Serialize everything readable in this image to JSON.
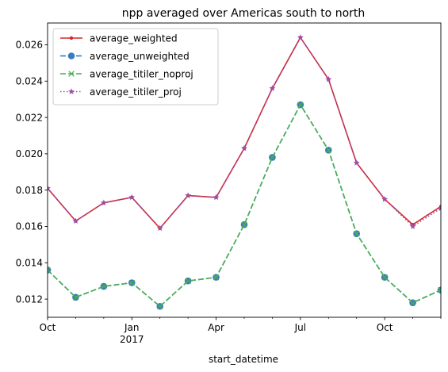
{
  "chart_data": {
    "type": "line",
    "title": "npp averaged over Americas south to north",
    "xlabel": "start_datetime",
    "ylabel": "",
    "x": [
      "2016-10",
      "2016-11",
      "2016-12",
      "2017-01",
      "2017-02",
      "2017-03",
      "2017-04",
      "2017-05",
      "2017-06",
      "2017-07",
      "2017-08",
      "2017-09",
      "2017-10",
      "2017-11",
      "2017-12"
    ],
    "x_tick_labels": [
      {
        "x": "2016-10",
        "label": "Oct",
        "sublabel": ""
      },
      {
        "x": "2017-01",
        "label": "Jan",
        "sublabel": "2017"
      },
      {
        "x": "2017-04",
        "label": "Apr",
        "sublabel": ""
      },
      {
        "x": "2017-07",
        "label": "Jul",
        "sublabel": ""
      },
      {
        "x": "2017-10",
        "label": "Oct",
        "sublabel": ""
      }
    ],
    "x_minor_ticks": [
      "2016-11",
      "2016-12",
      "2017-02",
      "2017-03",
      "2017-05",
      "2017-06",
      "2017-08",
      "2017-09",
      "2017-11",
      "2017-12"
    ],
    "ylim": [
      0.011,
      0.0272
    ],
    "y_ticks": [
      0.012,
      0.014,
      0.016,
      0.018,
      0.02,
      0.022,
      0.024,
      0.026
    ],
    "y_tick_labels": [
      "0.012",
      "0.014",
      "0.016",
      "0.018",
      "0.020",
      "0.022",
      "0.024",
      "0.026"
    ],
    "grid": false,
    "legend_position": "top-left",
    "series": [
      {
        "name": "average_weighted",
        "color": "#d62728",
        "line_style": "solid",
        "marker": "dot",
        "values": [
          0.0181,
          0.0163,
          0.0173,
          0.0176,
          0.0159,
          0.0177,
          0.0176,
          0.0203,
          0.0236,
          0.0264,
          0.0241,
          0.0195,
          0.0175,
          0.0161,
          0.0171
        ]
      },
      {
        "name": "average_unweighted",
        "color": "#1f77b4",
        "marker_color": "#3a7bbf",
        "line_style": "dashed",
        "marker": "circle",
        "values": [
          0.0136,
          0.0121,
          0.0127,
          0.0129,
          0.0116,
          0.013,
          0.0132,
          0.0161,
          0.0198,
          0.0227,
          0.0202,
          0.0156,
          0.0132,
          0.0118,
          0.0125
        ]
      },
      {
        "name": "average_titiler_noproj",
        "color": "#4caf50",
        "line_style": "dashed",
        "marker": "x",
        "values": [
          0.0136,
          0.0121,
          0.0127,
          0.0129,
          0.0116,
          0.013,
          0.0132,
          0.0161,
          0.0198,
          0.0227,
          0.0202,
          0.0156,
          0.0132,
          0.0118,
          0.0125
        ]
      },
      {
        "name": "average_titiler_proj",
        "color": "#9c4fa8",
        "line_style": "dotted",
        "marker": "star",
        "values": [
          0.0181,
          0.0163,
          0.0173,
          0.0176,
          0.0159,
          0.0177,
          0.0176,
          0.0203,
          0.0236,
          0.0264,
          0.0241,
          0.0195,
          0.0175,
          0.016,
          0.017
        ]
      }
    ]
  }
}
